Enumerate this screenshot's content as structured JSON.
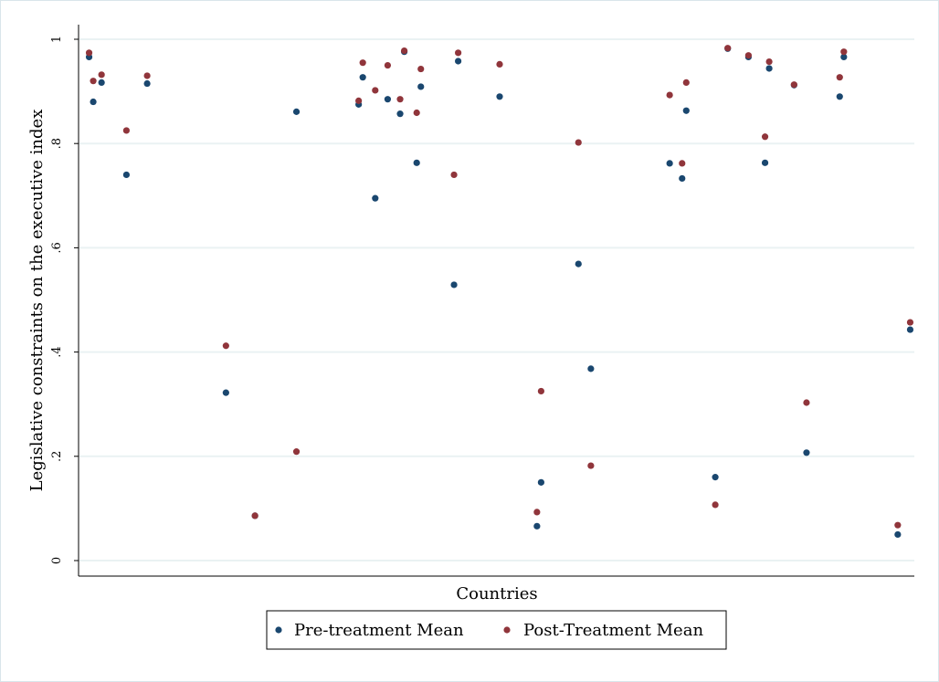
{
  "chart_data": {
    "type": "scatter",
    "title": "",
    "xlabel": "Countries",
    "ylabel": "Legislative constraints on the executive index",
    "ylim": [
      0,
      1
    ],
    "yticks": [
      {
        "value": 0,
        "label": "0"
      },
      {
        "value": 0.2,
        "label": ".2"
      },
      {
        "value": 0.4,
        "label": ".4"
      },
      {
        "value": 0.6,
        "label": ".6"
      },
      {
        "value": 0.8,
        "label": ".8"
      },
      {
        "value": 1,
        "label": "1"
      }
    ],
    "grid": true,
    "legend_position": "bottom",
    "series": [
      {
        "name": "Pre-treatment Mean",
        "color": "#1a476f",
        "points": [
          {
            "x": 1,
            "y": 0.966
          },
          {
            "x": 2,
            "y": 0.88
          },
          {
            "x": 4,
            "y": 0.917
          },
          {
            "x": 10,
            "y": 0.74
          },
          {
            "x": 15,
            "y": 0.915
          },
          {
            "x": 34,
            "y": 0.322
          },
          {
            "x": 41,
            "y": 0.086
          },
          {
            "x": 51,
            "y": 0.861
          },
          {
            "x": 66,
            "y": 0.875
          },
          {
            "x": 67,
            "y": 0.927
          },
          {
            "x": 70,
            "y": 0.695
          },
          {
            "x": 73,
            "y": 0.885
          },
          {
            "x": 76,
            "y": 0.857
          },
          {
            "x": 77,
            "y": 0.976
          },
          {
            "x": 80,
            "y": 0.763
          },
          {
            "x": 81,
            "y": 0.909
          },
          {
            "x": 89,
            "y": 0.529
          },
          {
            "x": 90,
            "y": 0.958
          },
          {
            "x": 100,
            "y": 0.89
          },
          {
            "x": 109,
            "y": 0.066
          },
          {
            "x": 110,
            "y": 0.15
          },
          {
            "x": 119,
            "y": 0.569
          },
          {
            "x": 122,
            "y": 0.368
          },
          {
            "x": 141,
            "y": 0.762
          },
          {
            "x": 144,
            "y": 0.733
          },
          {
            "x": 145,
            "y": 0.863
          },
          {
            "x": 152,
            "y": 0.16
          },
          {
            "x": 155,
            "y": 0.982
          },
          {
            "x": 160,
            "y": 0.966
          },
          {
            "x": 164,
            "y": 0.763
          },
          {
            "x": 165,
            "y": 0.944
          },
          {
            "x": 171,
            "y": 0.912
          },
          {
            "x": 174,
            "y": 0.207
          },
          {
            "x": 182,
            "y": 0.89
          },
          {
            "x": 183,
            "y": 0.966
          },
          {
            "x": 196,
            "y": 0.05
          },
          {
            "x": 199,
            "y": 0.443
          }
        ]
      },
      {
        "name": "Post-Treatment Mean",
        "color": "#90353b",
        "points": [
          {
            "x": 1,
            "y": 0.974
          },
          {
            "x": 2,
            "y": 0.92
          },
          {
            "x": 4,
            "y": 0.932
          },
          {
            "x": 10,
            "y": 0.825
          },
          {
            "x": 15,
            "y": 0.93
          },
          {
            "x": 34,
            "y": 0.412
          },
          {
            "x": 41,
            "y": 0.086
          },
          {
            "x": 51,
            "y": 0.209
          },
          {
            "x": 66,
            "y": 0.882
          },
          {
            "x": 67,
            "y": 0.955
          },
          {
            "x": 70,
            "y": 0.902
          },
          {
            "x": 73,
            "y": 0.95
          },
          {
            "x": 76,
            "y": 0.885
          },
          {
            "x": 77,
            "y": 0.978
          },
          {
            "x": 80,
            "y": 0.859
          },
          {
            "x": 81,
            "y": 0.943
          },
          {
            "x": 89,
            "y": 0.74
          },
          {
            "x": 90,
            "y": 0.974
          },
          {
            "x": 100,
            "y": 0.952
          },
          {
            "x": 109,
            "y": 0.093
          },
          {
            "x": 110,
            "y": 0.325
          },
          {
            "x": 119,
            "y": 0.802
          },
          {
            "x": 122,
            "y": 0.182
          },
          {
            "x": 141,
            "y": 0.893
          },
          {
            "x": 144,
            "y": 0.762
          },
          {
            "x": 145,
            "y": 0.917
          },
          {
            "x": 152,
            "y": 0.107
          },
          {
            "x": 155,
            "y": 0.983
          },
          {
            "x": 160,
            "y": 0.969
          },
          {
            "x": 164,
            "y": 0.813
          },
          {
            "x": 165,
            "y": 0.957
          },
          {
            "x": 171,
            "y": 0.913
          },
          {
            "x": 174,
            "y": 0.303
          },
          {
            "x": 182,
            "y": 0.927
          },
          {
            "x": 183,
            "y": 0.976
          },
          {
            "x": 196,
            "y": 0.068
          },
          {
            "x": 199,
            "y": 0.457
          }
        ]
      }
    ]
  }
}
